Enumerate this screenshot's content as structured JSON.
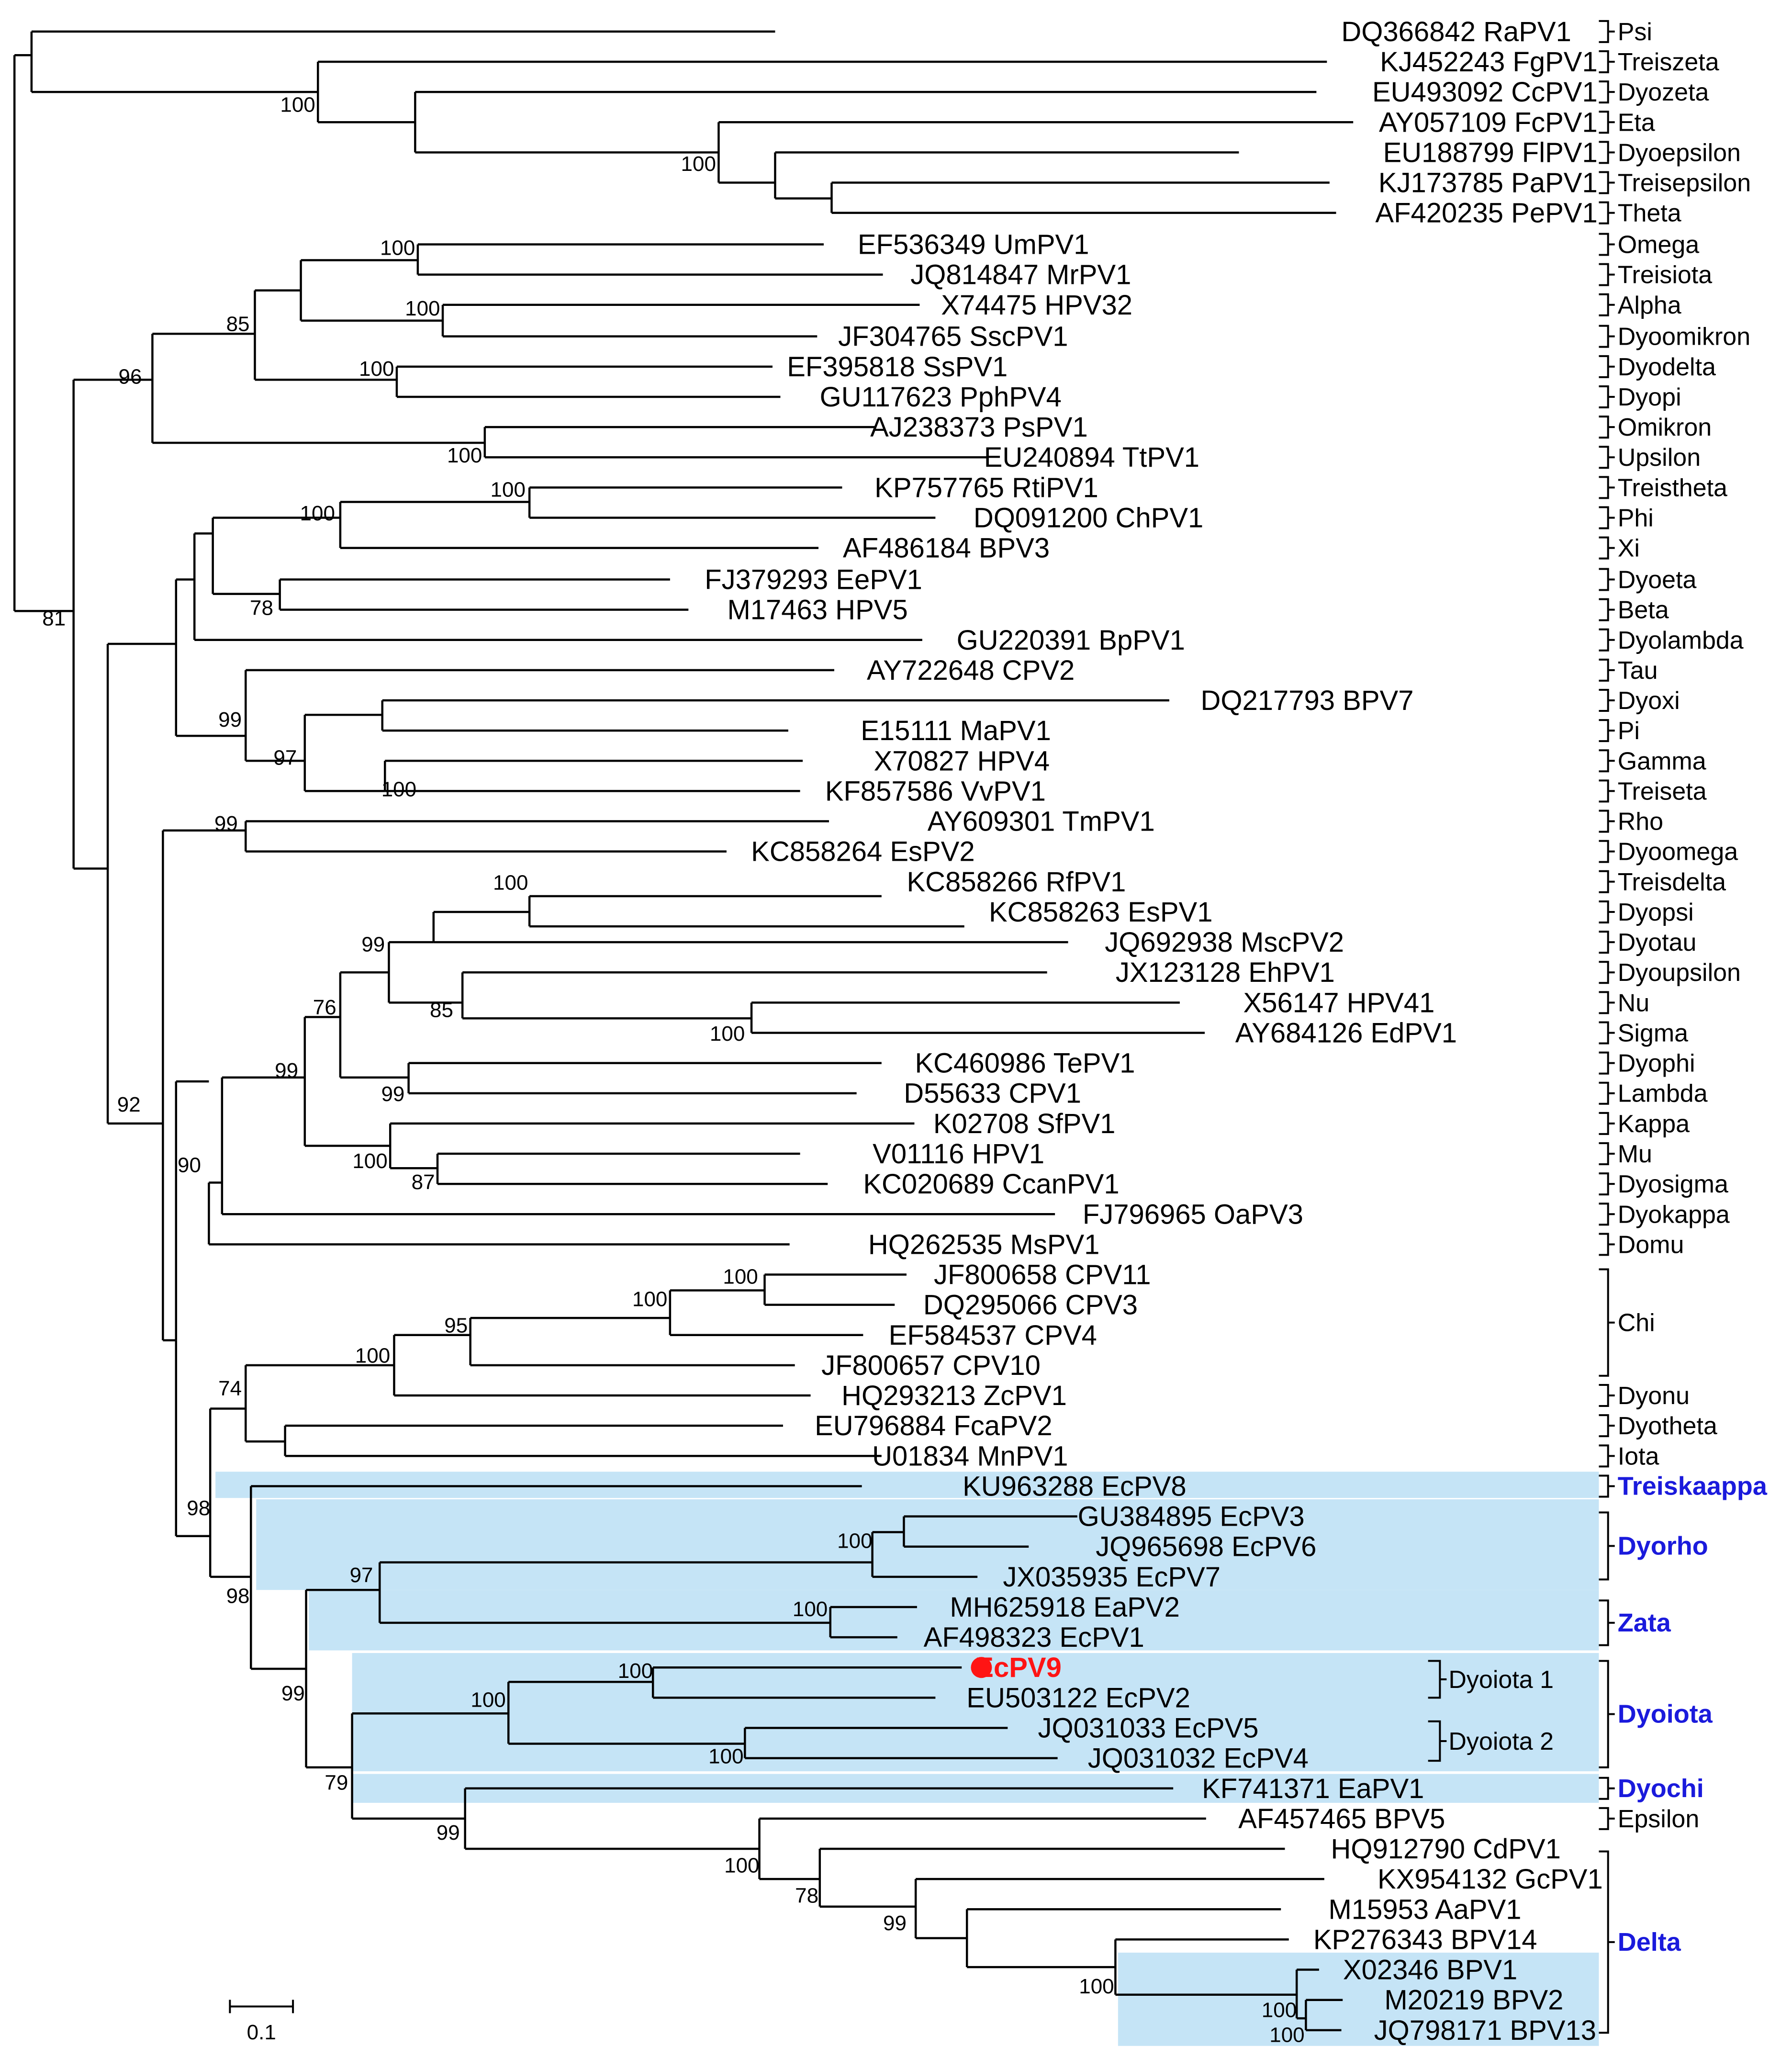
{
  "figure": {
    "type": "phylogenetic-tree",
    "scale_bar_label": "0.1",
    "highlight_color": "#c5e4f6",
    "highlight_text_color": "#1a1adc",
    "focus_color": "#ff1414"
  },
  "taxa": [
    "DQ366842 RaPV1",
    "KJ452243 FgPV1",
    "EU493092 CcPV1",
    "AY057109 FcPV1",
    "EU188799 FlPV1",
    "KJ173785 PaPV1",
    "AF420235 PePV1",
    "EF536349 UmPV1",
    "JQ814847 MrPV1",
    "X74475 HPV32",
    "JF304765 SscPV1",
    "EF395818 SsPV1",
    "GU117623 PphPV4",
    "AJ238373 PsPV1",
    "EU240894 TtPV1",
    "KP757765 RtiPV1",
    "DQ091200 ChPV1",
    "AF486184 BPV3",
    "FJ379293 EePV1",
    "M17463 HPV5",
    "GU220391 BpPV1",
    "AY722648 CPV2",
    "DQ217793 BPV7",
    "E15111 MaPV1",
    "X70827 HPV4",
    "KF857586 VvPV1",
    "AY609301 TmPV1",
    "KC858264 EsPV2",
    "KC858266 RfPV1",
    "KC858263 EsPV1",
    "JQ692938 MscPV2",
    "JX123128 EhPV1",
    "X56147 HPV41",
    "AY684126 EdPV1",
    "KC460986 TePV1",
    "D55633 CPV1",
    "K02708 SfPV1",
    "V01116 HPV1",
    "KC020689 CcanPV1",
    "FJ796965 OaPV3",
    "HQ262535 MsPV1",
    "JF800658 CPV11",
    "DQ295066 CPV3",
    "EF584537 CPV4",
    "JF800657 CPV10",
    "HQ293213 ZcPV1",
    "EU796884 FcaPV2",
    "U01834 MnPV1",
    "KU963288 EcPV8",
    "GU384895 EcPV3",
    "JQ965698 EcPV6",
    "JX035935 EcPV7",
    "MH625918 EaPV2",
    "AF498323 EcPV1",
    "EcPV9",
    "EU503122 EcPV2",
    "JQ031033 EcPV5",
    "JQ031032 EcPV4",
    "KF741371 EaPV1",
    "AF457465 BPV5",
    "HQ912790 CdPV1",
    "KX954132 GcPV1",
    "M15953 AaPV1",
    "KP276343 BPV14",
    "X02346 BPV1",
    "M20219 BPV2",
    "JQ798171 BPV13"
  ],
  "bootstrap": [
    "100",
    "100",
    "100",
    "85",
    "96",
    "100",
    "100",
    "100",
    "100",
    "78",
    "100",
    "81",
    "99",
    "97",
    "100",
    "99",
    "100",
    "99",
    "85",
    "100",
    "76",
    "99",
    "99",
    "100",
    "87",
    "90",
    "92",
    "100",
    "100",
    "95",
    "100",
    "74",
    "98",
    "98",
    "100",
    "97",
    "100",
    "99",
    "100",
    "100",
    "100",
    "79",
    "99",
    "100",
    "78",
    "99",
    "100",
    "100",
    "100"
  ],
  "genera": [
    {
      "name": "Psi"
    },
    {
      "name": "Treiszeta"
    },
    {
      "name": "Dyozeta"
    },
    {
      "name": "Eta"
    },
    {
      "name": "Dyoepsilon"
    },
    {
      "name": "Treisepsilon"
    },
    {
      "name": "Theta"
    },
    {
      "name": "Omega"
    },
    {
      "name": "Treisiota"
    },
    {
      "name": "Alpha"
    },
    {
      "name": "Dyoomikron"
    },
    {
      "name": "Dyodelta"
    },
    {
      "name": "Dyopi"
    },
    {
      "name": "Omikron"
    },
    {
      "name": "Upsilon"
    },
    {
      "name": "Treistheta"
    },
    {
      "name": "Phi"
    },
    {
      "name": "Xi"
    },
    {
      "name": "Dyoeta"
    },
    {
      "name": "Beta"
    },
    {
      "name": "Dyolambda"
    },
    {
      "name": "Tau"
    },
    {
      "name": "Dyoxi"
    },
    {
      "name": "Pi"
    },
    {
      "name": "Gamma"
    },
    {
      "name": "Treiseta"
    },
    {
      "name": "Rho"
    },
    {
      "name": "Dyoomega"
    },
    {
      "name": "Treisdelta"
    },
    {
      "name": "Dyopsi"
    },
    {
      "name": "Dyotau"
    },
    {
      "name": "Dyoupsilon"
    },
    {
      "name": "Nu"
    },
    {
      "name": "Sigma"
    },
    {
      "name": "Dyophi"
    },
    {
      "name": "Lambda"
    },
    {
      "name": "Kappa"
    },
    {
      "name": "Mu"
    },
    {
      "name": "Dyosigma"
    },
    {
      "name": "Dyokappa"
    },
    {
      "name": "Domu"
    },
    {
      "name": "Chi"
    },
    {
      "name": "Dyonu"
    },
    {
      "name": "Dyotheta"
    },
    {
      "name": "Iota"
    },
    {
      "name": "Treiskaappa",
      "highlight": true
    },
    {
      "name": "Dyorho",
      "highlight": true
    },
    {
      "name": "Zata",
      "highlight": true
    },
    {
      "name": "Dyoiota",
      "highlight": true
    },
    {
      "name": "Dyochi",
      "highlight": true
    },
    {
      "name": "Epsilon"
    },
    {
      "name": "Delta",
      "highlight": true
    }
  ],
  "subgroups": [
    "Dyoiota 1",
    "Dyoiota 2"
  ]
}
